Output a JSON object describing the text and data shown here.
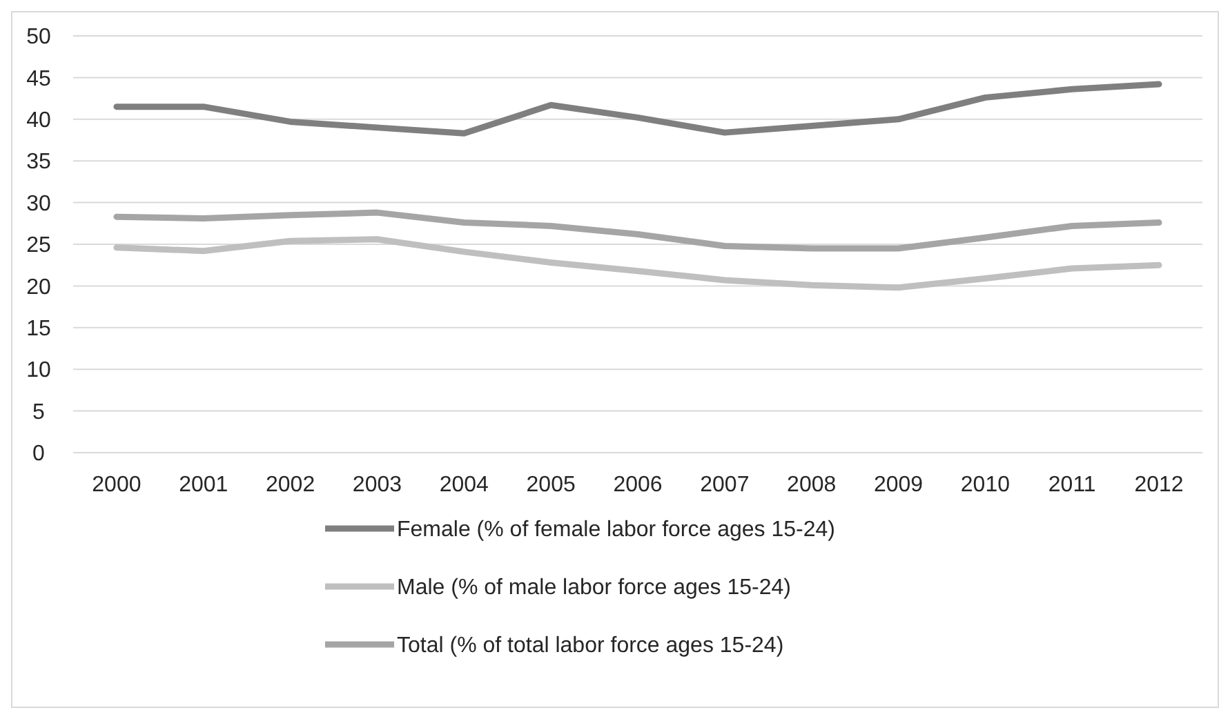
{
  "chart_data": {
    "type": "line",
    "categories": [
      "2000",
      "2001",
      "2002",
      "2003",
      "2004",
      "2005",
      "2006",
      "2007",
      "2008",
      "2009",
      "2010",
      "2011",
      "2012"
    ],
    "series": [
      {
        "name": "Female (% of female labor force ages 15-24)",
        "color": "#7f7f7f",
        "values": [
          41.5,
          41.5,
          39.7,
          39.0,
          38.3,
          41.7,
          40.2,
          38.4,
          39.2,
          40.0,
          42.6,
          43.6,
          44.2
        ]
      },
      {
        "name": "Male (% of male labor force ages 15-24)",
        "color": "#bfbfbf",
        "values": [
          24.6,
          24.2,
          25.4,
          25.6,
          24.1,
          22.8,
          21.8,
          20.7,
          20.1,
          19.8,
          20.9,
          22.1,
          22.5
        ]
      },
      {
        "name": "Total (% of total labor force ages 15-24)",
        "color": "#a5a5a5",
        "values": [
          28.3,
          28.1,
          28.5,
          28.8,
          27.6,
          27.2,
          26.2,
          24.8,
          24.5,
          24.5,
          25.8,
          27.2,
          27.6
        ]
      }
    ],
    "ylim": [
      0,
      50
    ],
    "yticks": [
      0,
      5,
      10,
      15,
      20,
      25,
      30,
      35,
      40,
      45,
      50
    ],
    "grid": "y",
    "legend": "bottom",
    "marker": "none",
    "line_style": "solid"
  }
}
